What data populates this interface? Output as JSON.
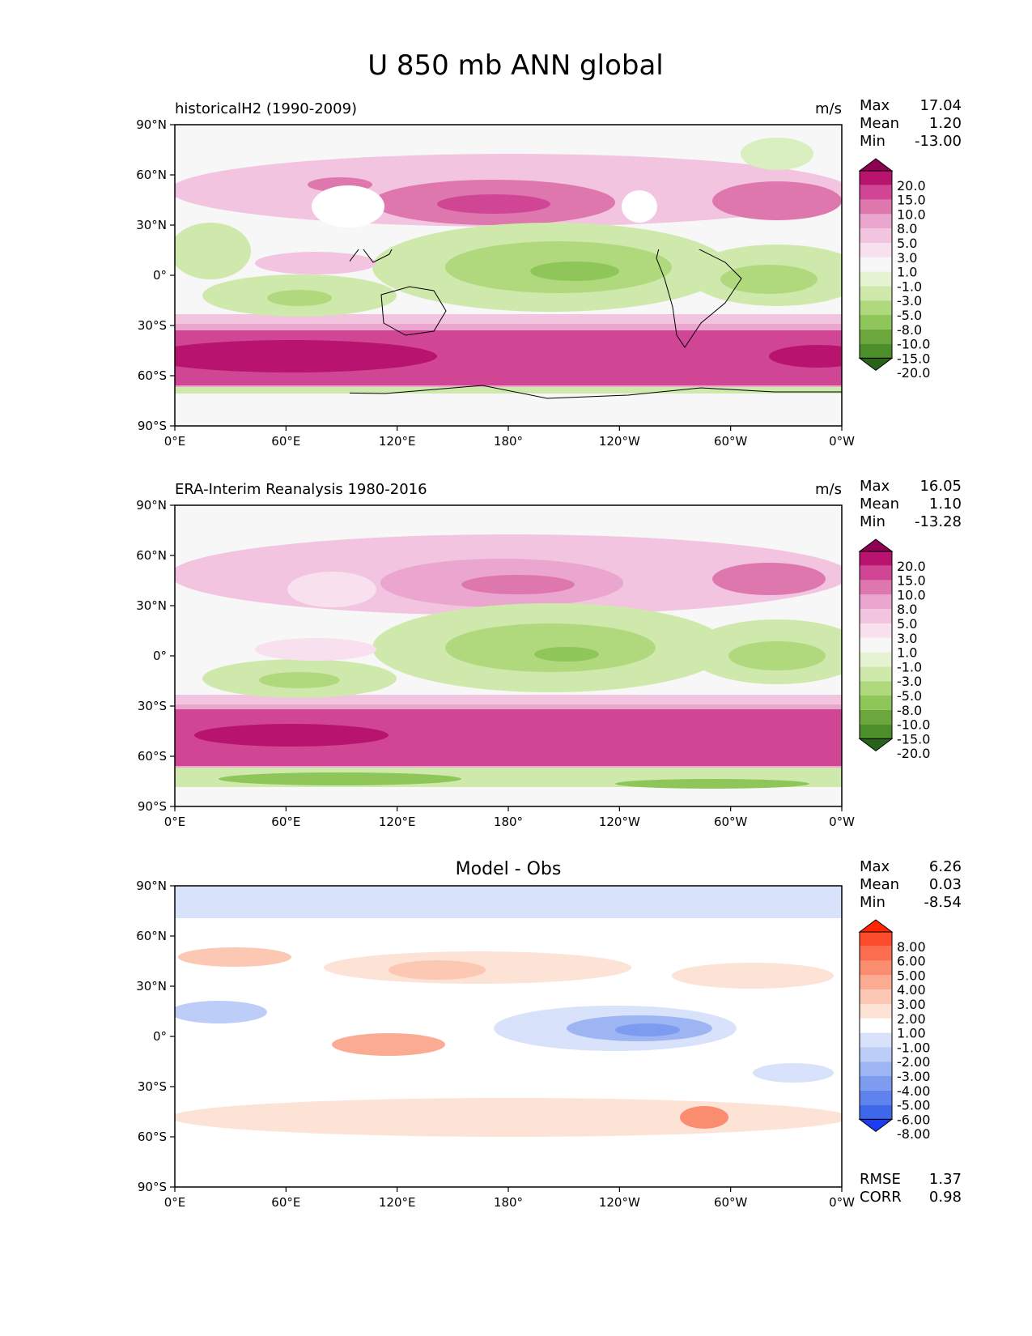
{
  "title": "U 850 mb ANN global",
  "lat_ticks": [
    "90°N",
    "60°N",
    "30°N",
    "0°",
    "30°S",
    "60°S",
    "90°S"
  ],
  "lon_ticks": [
    "0°E",
    "60°E",
    "120°E",
    "180°",
    "120°W",
    "60°W",
    "0°W"
  ],
  "stat_labels": {
    "max": "Max",
    "mean": "Mean",
    "min": "Min",
    "rmse": "RMSE",
    "corr": "CORR"
  },
  "panels": [
    {
      "subtitle": "historicalH2 (1990-2009)",
      "units": "m/s",
      "stats": {
        "max": "17.04",
        "mean": "1.20",
        "min": "-13.00"
      },
      "colorbar": {
        "levels": [
          "20.0",
          "15.0",
          "10.0",
          "8.0",
          "5.0",
          "3.0",
          "1.0",
          "-1.0",
          "-3.0",
          "-5.0",
          "-8.0",
          "-10.0",
          "-15.0",
          "-20.0"
        ],
        "colors": [
          "#8e0152",
          "#b8136f",
          "#d04695",
          "#de77ae",
          "#eaa6cf",
          "#f2c4e0",
          "#f8e0ee",
          "#f7f7f7",
          "#e6f3d3",
          "#cfe9ac",
          "#b0d97d",
          "#8fc659",
          "#6ba73c",
          "#4c8e29",
          "#276419"
        ]
      }
    },
    {
      "subtitle": "ERA-Interim Reanalysis 1980-2016",
      "units": "m/s",
      "stats": {
        "max": "16.05",
        "mean": "1.10",
        "min": "-13.28"
      },
      "colorbar": {
        "levels": [
          "20.0",
          "15.0",
          "10.0",
          "8.0",
          "5.0",
          "3.0",
          "1.0",
          "-1.0",
          "-3.0",
          "-5.0",
          "-8.0",
          "-10.0",
          "-15.0",
          "-20.0"
        ],
        "colors": [
          "#8e0152",
          "#b8136f",
          "#d04695",
          "#de77ae",
          "#eaa6cf",
          "#f2c4e0",
          "#f8e0ee",
          "#f7f7f7",
          "#e6f3d3",
          "#cfe9ac",
          "#b0d97d",
          "#8fc659",
          "#6ba73c",
          "#4c8e29",
          "#276419"
        ]
      }
    },
    {
      "subtitle": "Model - Obs",
      "units": "",
      "stats": {
        "max": "6.26",
        "mean": "0.03",
        "min": "-8.54",
        "rmse": "1.37",
        "corr": "0.98"
      },
      "colorbar": {
        "levels": [
          "8.00",
          "6.00",
          "5.00",
          "4.00",
          "3.00",
          "2.00",
          "1.00",
          "-1.00",
          "-2.00",
          "-3.00",
          "-4.00",
          "-5.00",
          "-6.00",
          "-8.00"
        ],
        "colors": [
          "#ff2600",
          "#fb4d2e",
          "#fa6e4f",
          "#fa8c6f",
          "#fbab92",
          "#fcc7b3",
          "#fde2d6",
          "#ffffff",
          "#d8e2fb",
          "#bccdf8",
          "#9eb5f3",
          "#7e9cef",
          "#5f82ec",
          "#3e67ea",
          "#1a3cf5"
        ]
      }
    }
  ]
}
